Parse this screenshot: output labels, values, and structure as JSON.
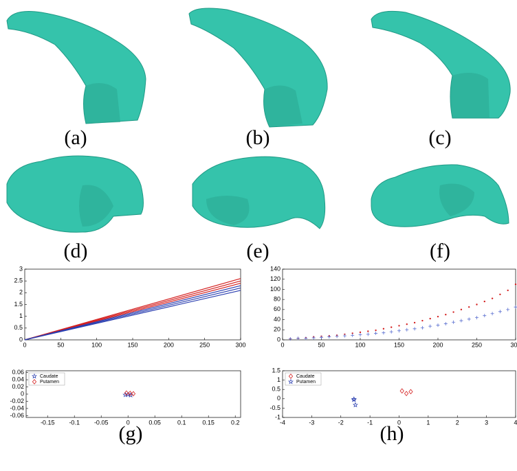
{
  "panels": [
    "(a)",
    "(b)",
    "(c)",
    "(d)",
    "(e)",
    "(f)",
    "(g)",
    "(h)"
  ],
  "chart_data": [
    {
      "type": "line",
      "x": [
        0,
        300
      ],
      "xlim": [
        0,
        300
      ],
      "xticks": [
        0,
        50,
        100,
        150,
        200,
        250,
        300
      ],
      "ylim": [
        0,
        3
      ],
      "yticks": [
        0,
        0.5,
        1,
        1.5,
        2,
        2.5,
        3
      ],
      "series": [
        {
          "color": "#d42020",
          "values": [
            0,
            2.6
          ]
        },
        {
          "color": "#d42020",
          "values": [
            0,
            2.5
          ]
        },
        {
          "color": "#d42020",
          "values": [
            0,
            2.4
          ]
        },
        {
          "color": "#2a3eb0",
          "values": [
            0,
            2.3
          ]
        },
        {
          "color": "#2a3eb0",
          "values": [
            0,
            2.2
          ]
        },
        {
          "color": "#2a3eb0",
          "values": [
            0,
            2.1
          ]
        }
      ]
    },
    {
      "type": "scatter",
      "xlim": [
        0,
        300
      ],
      "xticks": [
        0,
        50,
        100,
        150,
        200,
        250,
        300
      ],
      "ylim": [
        0,
        140
      ],
      "yticks": [
        0,
        20,
        40,
        60,
        80,
        100,
        120,
        140
      ],
      "series": [
        {
          "color": "#d42020",
          "marker": "dot",
          "x": [
            10,
            20,
            30,
            40,
            50,
            60,
            70,
            80,
            90,
            100,
            110,
            120,
            130,
            140,
            150,
            160,
            170,
            180,
            190,
            200,
            210,
            220,
            230,
            240,
            250,
            260,
            270,
            280,
            290,
            300
          ],
          "values": [
            2,
            3,
            4,
            6,
            7,
            8,
            9,
            11,
            13,
            15,
            17,
            19,
            22,
            25,
            28,
            31,
            34,
            38,
            42,
            46,
            50,
            55,
            60,
            65,
            70,
            76,
            82,
            90,
            98,
            110
          ]
        },
        {
          "color": "#5a6fd0",
          "marker": "plus",
          "x": [
            10,
            20,
            30,
            40,
            50,
            60,
            70,
            80,
            90,
            100,
            110,
            120,
            130,
            140,
            150,
            160,
            170,
            180,
            190,
            200,
            210,
            220,
            230,
            240,
            250,
            260,
            270,
            280,
            290,
            300
          ],
          "values": [
            2,
            3,
            3,
            4,
            5,
            6,
            7,
            8,
            9,
            10,
            11,
            13,
            14,
            16,
            18,
            20,
            22,
            24,
            27,
            29,
            32,
            35,
            38,
            41,
            44,
            48,
            52,
            56,
            60,
            65
          ]
        }
      ]
    },
    {
      "type": "scatter",
      "xlim": [
        -0.19,
        0.21
      ],
      "xticks": [
        -0.15,
        -0.1,
        -0.05,
        0,
        0.05,
        0.1,
        0.15,
        0.2
      ],
      "ylim": [
        -0.065,
        0.065
      ],
      "yticks": [
        -0.06,
        -0.04,
        -0.02,
        0,
        0.02,
        0.04,
        0.06
      ],
      "series": [
        {
          "name": "Caudate",
          "color": "#2a3eb0",
          "marker": "star",
          "x": [
            -0.005,
            0.005,
            0.0
          ],
          "values": [
            -0.002,
            -0.003,
            -0.001
          ]
        },
        {
          "name": "Putamen",
          "color": "#d42020",
          "marker": "diamond",
          "x": [
            -0.003,
            0.004,
            0.01
          ],
          "values": [
            0.003,
            0.002,
            0.001
          ]
        }
      ]
    },
    {
      "type": "scatter",
      "xlim": [
        -4,
        4
      ],
      "xticks": [
        -4,
        -3,
        -2,
        -1,
        0,
        1,
        2,
        3,
        4
      ],
      "ylim": [
        -1,
        1.5
      ],
      "yticks": [
        -1,
        -0.5,
        0,
        0.5,
        1,
        1.5
      ],
      "series": [
        {
          "name": "Caudate",
          "color": "#d42020",
          "marker": "diamond",
          "x": [
            0.1,
            0.25,
            0.4
          ],
          "values": [
            0.42,
            0.28,
            0.38
          ]
        },
        {
          "name": "Putamen",
          "color": "#2a3eb0",
          "marker": "star",
          "x": [
            -1.55,
            -1.55,
            -1.5
          ],
          "values": [
            -0.02,
            -0.05,
            -0.33
          ]
        }
      ]
    }
  ]
}
